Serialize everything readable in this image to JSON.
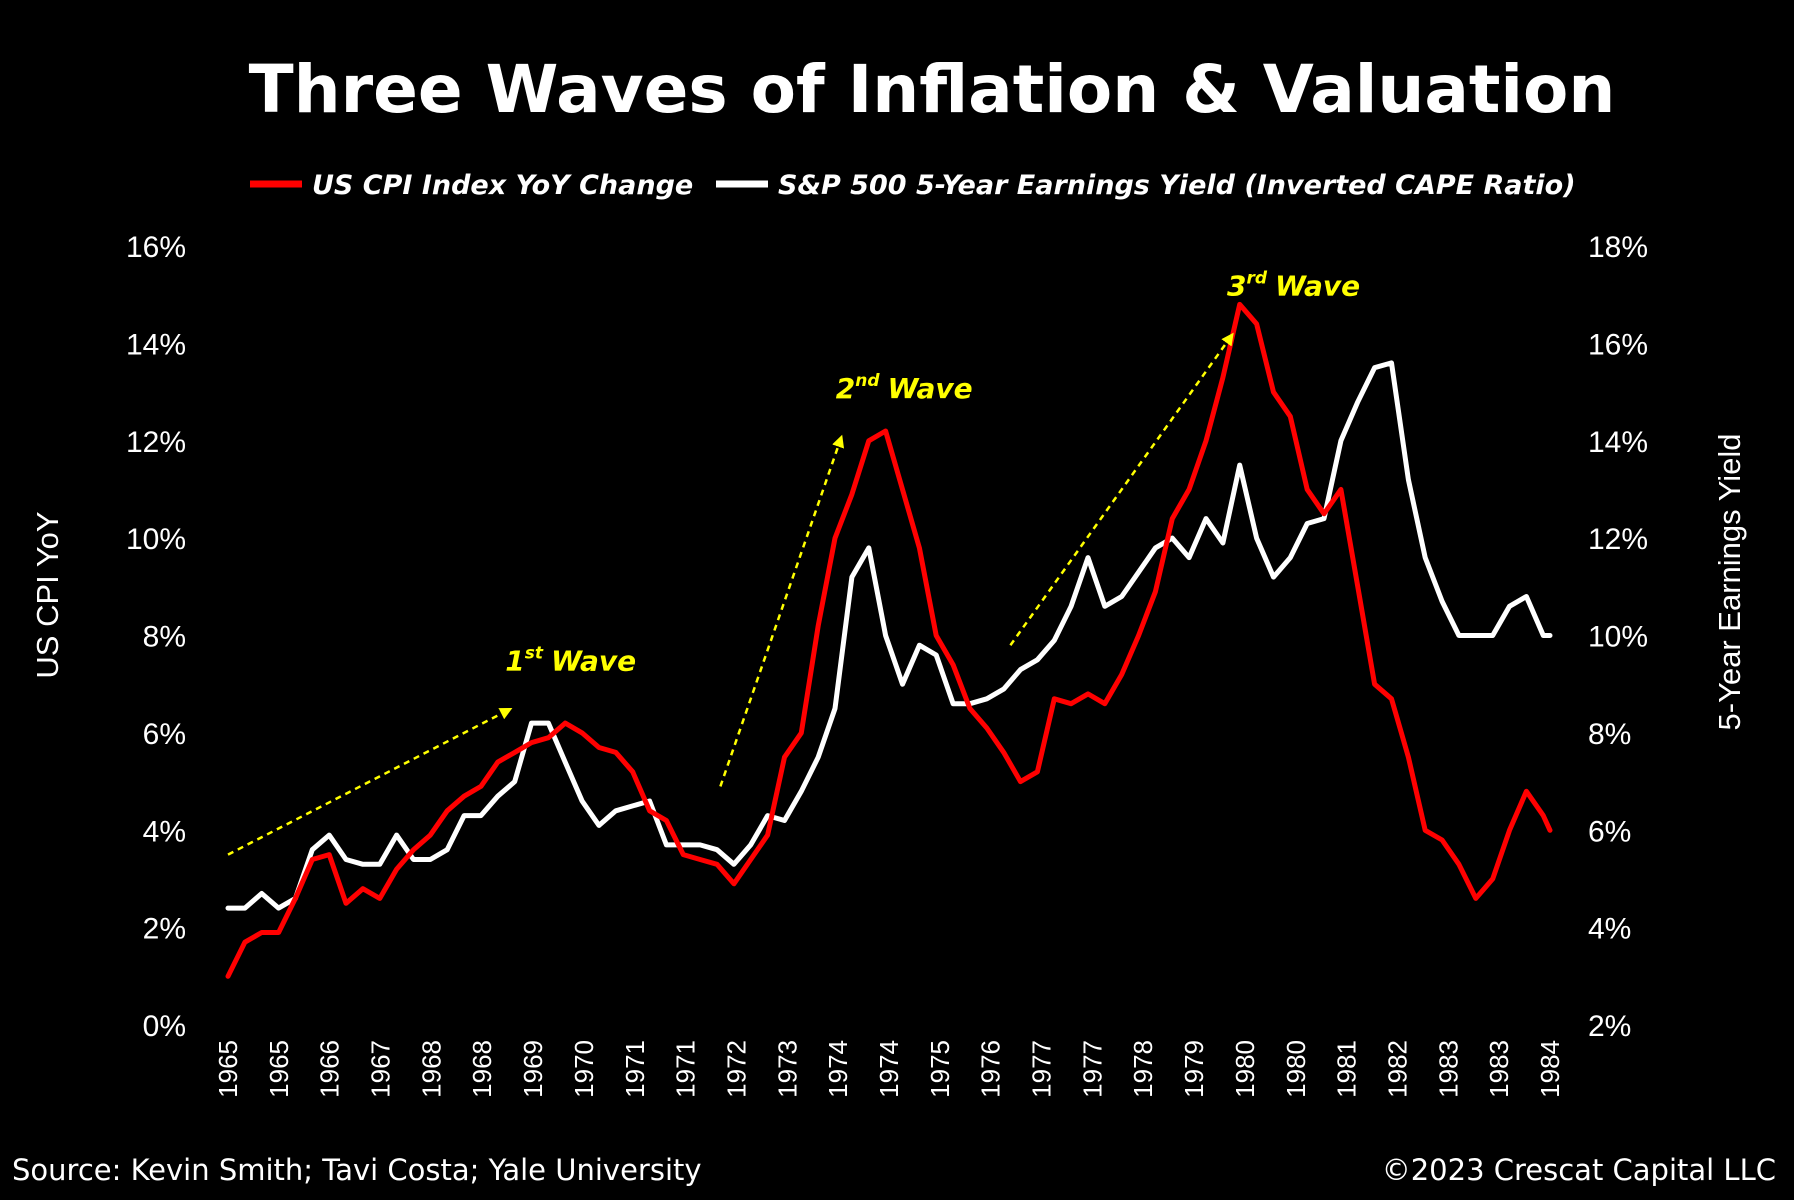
{
  "chart_data": {
    "type": "line",
    "title": "Three Waves of Inflation & Valuation",
    "ylabel": "US CPI YoY",
    "y2label": "5-Year Earnings Yield",
    "ylim": [
      0,
      16
    ],
    "y2lim": [
      2,
      18
    ],
    "yticks": [
      "0%",
      "2%",
      "4%",
      "6%",
      "8%",
      "10%",
      "12%",
      "14%",
      "16%"
    ],
    "y2ticks": [
      "2%",
      "4%",
      "6%",
      "8%",
      "10%",
      "12%",
      "14%",
      "16%",
      "18%"
    ],
    "xticks": [
      "1965",
      "1965",
      "1966",
      "1967",
      "1968",
      "1968",
      "1969",
      "1970",
      "1971",
      "1971",
      "1972",
      "1973",
      "1974",
      "1974",
      "1975",
      "1976",
      "1977",
      "1977",
      "1978",
      "1979",
      "1980",
      "1980",
      "1981",
      "1982",
      "1983",
      "1983",
      "1984"
    ],
    "legend_position": "top",
    "colors": {
      "cpi": "#ff0000",
      "yield": "#ffffff",
      "annotation": "#ffff00",
      "background": "#000000"
    },
    "series": [
      {
        "name": "US CPI Index YoY Change",
        "axis": "left",
        "color": "#ff0000",
        "x": [
          1965.0,
          1965.25,
          1965.5,
          1965.75,
          1966.0,
          1966.25,
          1966.5,
          1966.75,
          1967.0,
          1967.25,
          1967.5,
          1967.75,
          1968.0,
          1968.25,
          1968.5,
          1968.75,
          1969.0,
          1969.25,
          1969.5,
          1969.75,
          1970.0,
          1970.25,
          1970.5,
          1970.75,
          1971.0,
          1971.25,
          1971.5,
          1971.75,
          1972.0,
          1972.25,
          1972.5,
          1972.75,
          1973.0,
          1973.25,
          1973.5,
          1973.75,
          1974.0,
          1974.25,
          1974.5,
          1974.75,
          1975.0,
          1975.25,
          1975.5,
          1975.75,
          1976.0,
          1976.25,
          1976.5,
          1976.75,
          1977.0,
          1977.25,
          1977.5,
          1977.75,
          1978.0,
          1978.25,
          1978.5,
          1978.75,
          1979.0,
          1979.25,
          1979.5,
          1979.75,
          1980.0,
          1980.25,
          1980.5,
          1980.75,
          1981.0,
          1981.25,
          1981.5,
          1981.75,
          1982.0,
          1982.25,
          1982.5,
          1982.75,
          1983.0,
          1983.25,
          1983.5,
          1983.75,
          1984.0,
          1984.25,
          1984.5,
          1984.6
        ],
        "values": [
          1.0,
          1.7,
          1.9,
          1.9,
          2.6,
          3.4,
          3.5,
          2.5,
          2.8,
          2.6,
          3.2,
          3.6,
          3.9,
          4.4,
          4.7,
          4.9,
          5.4,
          5.6,
          5.8,
          5.9,
          6.2,
          6.0,
          5.7,
          5.6,
          5.2,
          4.4,
          4.2,
          3.5,
          3.4,
          3.3,
          2.9,
          3.4,
          3.9,
          5.5,
          6.0,
          8.2,
          10.0,
          10.9,
          12.0,
          12.2,
          11.0,
          9.8,
          8.0,
          7.4,
          6.5,
          6.1,
          5.6,
          5.0,
          5.2,
          6.7,
          6.6,
          6.8,
          6.6,
          7.2,
          8.0,
          8.9,
          10.4,
          11.0,
          12.0,
          13.3,
          14.8,
          14.4,
          13.0,
          12.5,
          11.0,
          10.5,
          11.0,
          9.0,
          7.0,
          6.7,
          5.5,
          4.0,
          3.8,
          3.3,
          2.6,
          3.0,
          4.0,
          4.8,
          4.3,
          4.0
        ]
      },
      {
        "name": "S&P 500 5-Year Earnings Yield (Inverted CAPE Ratio)",
        "axis": "right",
        "color": "#ffffff",
        "x": [
          1965.0,
          1965.25,
          1965.5,
          1965.75,
          1966.0,
          1966.25,
          1966.5,
          1966.75,
          1967.0,
          1967.25,
          1967.5,
          1967.75,
          1968.0,
          1968.25,
          1968.5,
          1968.75,
          1969.0,
          1969.25,
          1969.5,
          1969.75,
          1970.0,
          1970.25,
          1970.5,
          1970.75,
          1971.0,
          1971.25,
          1971.5,
          1971.75,
          1972.0,
          1972.25,
          1972.5,
          1972.75,
          1973.0,
          1973.25,
          1973.5,
          1973.75,
          1974.0,
          1974.25,
          1974.5,
          1974.75,
          1975.0,
          1975.25,
          1975.5,
          1975.75,
          1976.0,
          1976.25,
          1976.5,
          1976.75,
          1977.0,
          1977.25,
          1977.5,
          1977.75,
          1978.0,
          1978.25,
          1978.5,
          1978.75,
          1979.0,
          1979.25,
          1979.5,
          1979.75,
          1980.0,
          1980.25,
          1980.5,
          1980.75,
          1981.0,
          1981.25,
          1981.5,
          1981.75,
          1982.0,
          1982.25,
          1982.5,
          1982.75,
          1983.0,
          1983.25,
          1983.5,
          1983.75,
          1984.0,
          1984.25,
          1984.5,
          1984.6
        ],
        "values": [
          4.4,
          4.4,
          4.7,
          4.4,
          4.6,
          5.6,
          5.9,
          5.4,
          5.3,
          5.3,
          5.9,
          5.4,
          5.4,
          5.6,
          6.3,
          6.3,
          6.7,
          7.0,
          8.2,
          8.2,
          7.4,
          6.6,
          6.1,
          6.4,
          6.5,
          6.6,
          5.7,
          5.7,
          5.7,
          5.6,
          5.3,
          5.7,
          6.3,
          6.2,
          6.8,
          7.5,
          8.5,
          11.2,
          11.8,
          10.0,
          9.0,
          9.8,
          9.6,
          8.6,
          8.6,
          8.7,
          8.9,
          9.3,
          9.5,
          9.9,
          10.6,
          11.6,
          10.6,
          10.8,
          11.3,
          11.8,
          12.0,
          11.6,
          12.4,
          11.9,
          13.5,
          12.0,
          11.2,
          11.6,
          12.3,
          12.4,
          14.0,
          14.8,
          15.5,
          15.6,
          13.2,
          11.6,
          10.7,
          10.0,
          10.0,
          10.0,
          10.6,
          10.8,
          10.0,
          10.0
        ]
      }
    ],
    "annotations": [
      {
        "label": "Wave",
        "superscript": "st",
        "number": "1",
        "arrow_from": [
          1965.0,
          3.5
        ],
        "arrow_to": [
          1969.2,
          6.5
        ]
      },
      {
        "label": "Wave",
        "superscript": "nd",
        "number": "2",
        "arrow_from": [
          1972.3,
          4.9
        ],
        "arrow_to": [
          1974.1,
          12.1
        ]
      },
      {
        "label": "Wave",
        "superscript": "rd",
        "number": "3",
        "arrow_from": [
          1976.6,
          7.8
        ],
        "arrow_to": [
          1979.9,
          14.2
        ]
      }
    ]
  },
  "header": {
    "title": "Three Waves of Inflation & Valuation"
  },
  "legend": {
    "cpi_label": "US CPI Index YoY Change",
    "yield_label": "S&P 500 5-Year Earnings Yield (Inverted CAPE Ratio)"
  },
  "footer": {
    "source": "Source: Kevin Smith; Tavi Costa; Yale University",
    "copyright": "©2023 Crescat Capital LLC"
  }
}
